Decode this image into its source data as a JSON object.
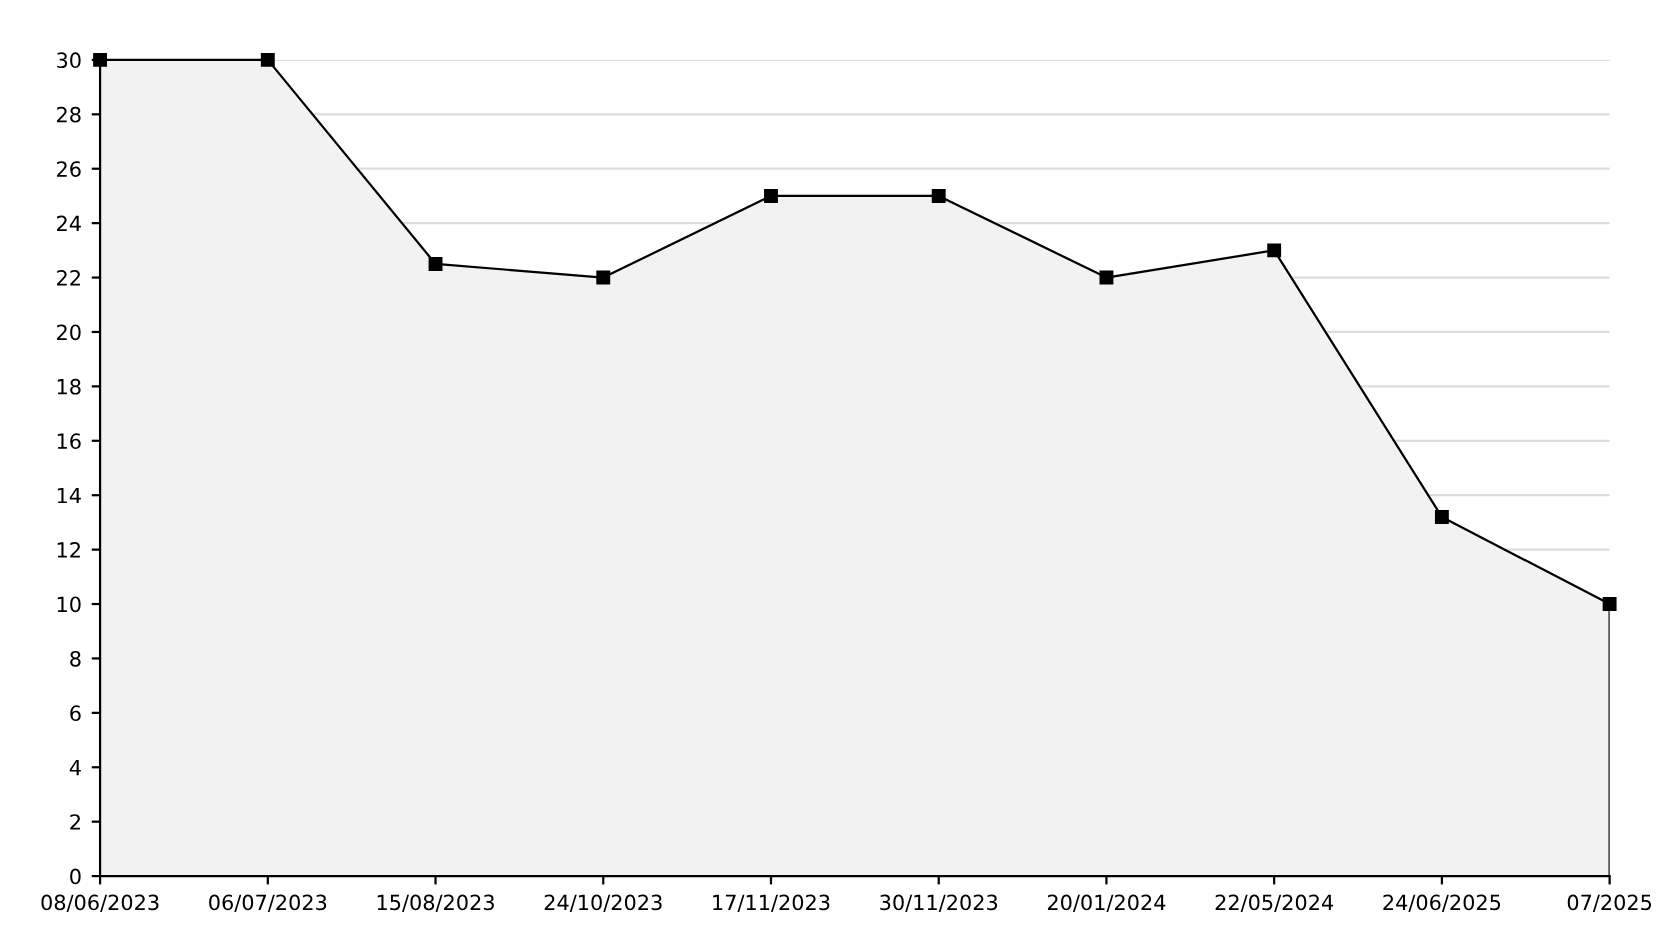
{
  "chart_data": {
    "type": "area",
    "categories": [
      "08/06/2023",
      "06/07/2023",
      "15/08/2023",
      "24/10/2023",
      "17/11/2023",
      "30/11/2023",
      "20/01/2024",
      "22/05/2024",
      "24/06/2025",
      "07/2025"
    ],
    "series": [
      {
        "color": "#000000",
        "values": [
          30,
          30,
          22.5,
          22,
          25,
          25,
          22,
          23,
          13.2,
          10
        ]
      }
    ],
    "ylim": [
      0,
      30
    ],
    "yticks": [
      0,
      2,
      4,
      6,
      8,
      10,
      12,
      14,
      16,
      18,
      20,
      22,
      24,
      26,
      28,
      30
    ],
    "grid": "y",
    "marker": "square",
    "line_style": "solid",
    "legend": false
  }
}
